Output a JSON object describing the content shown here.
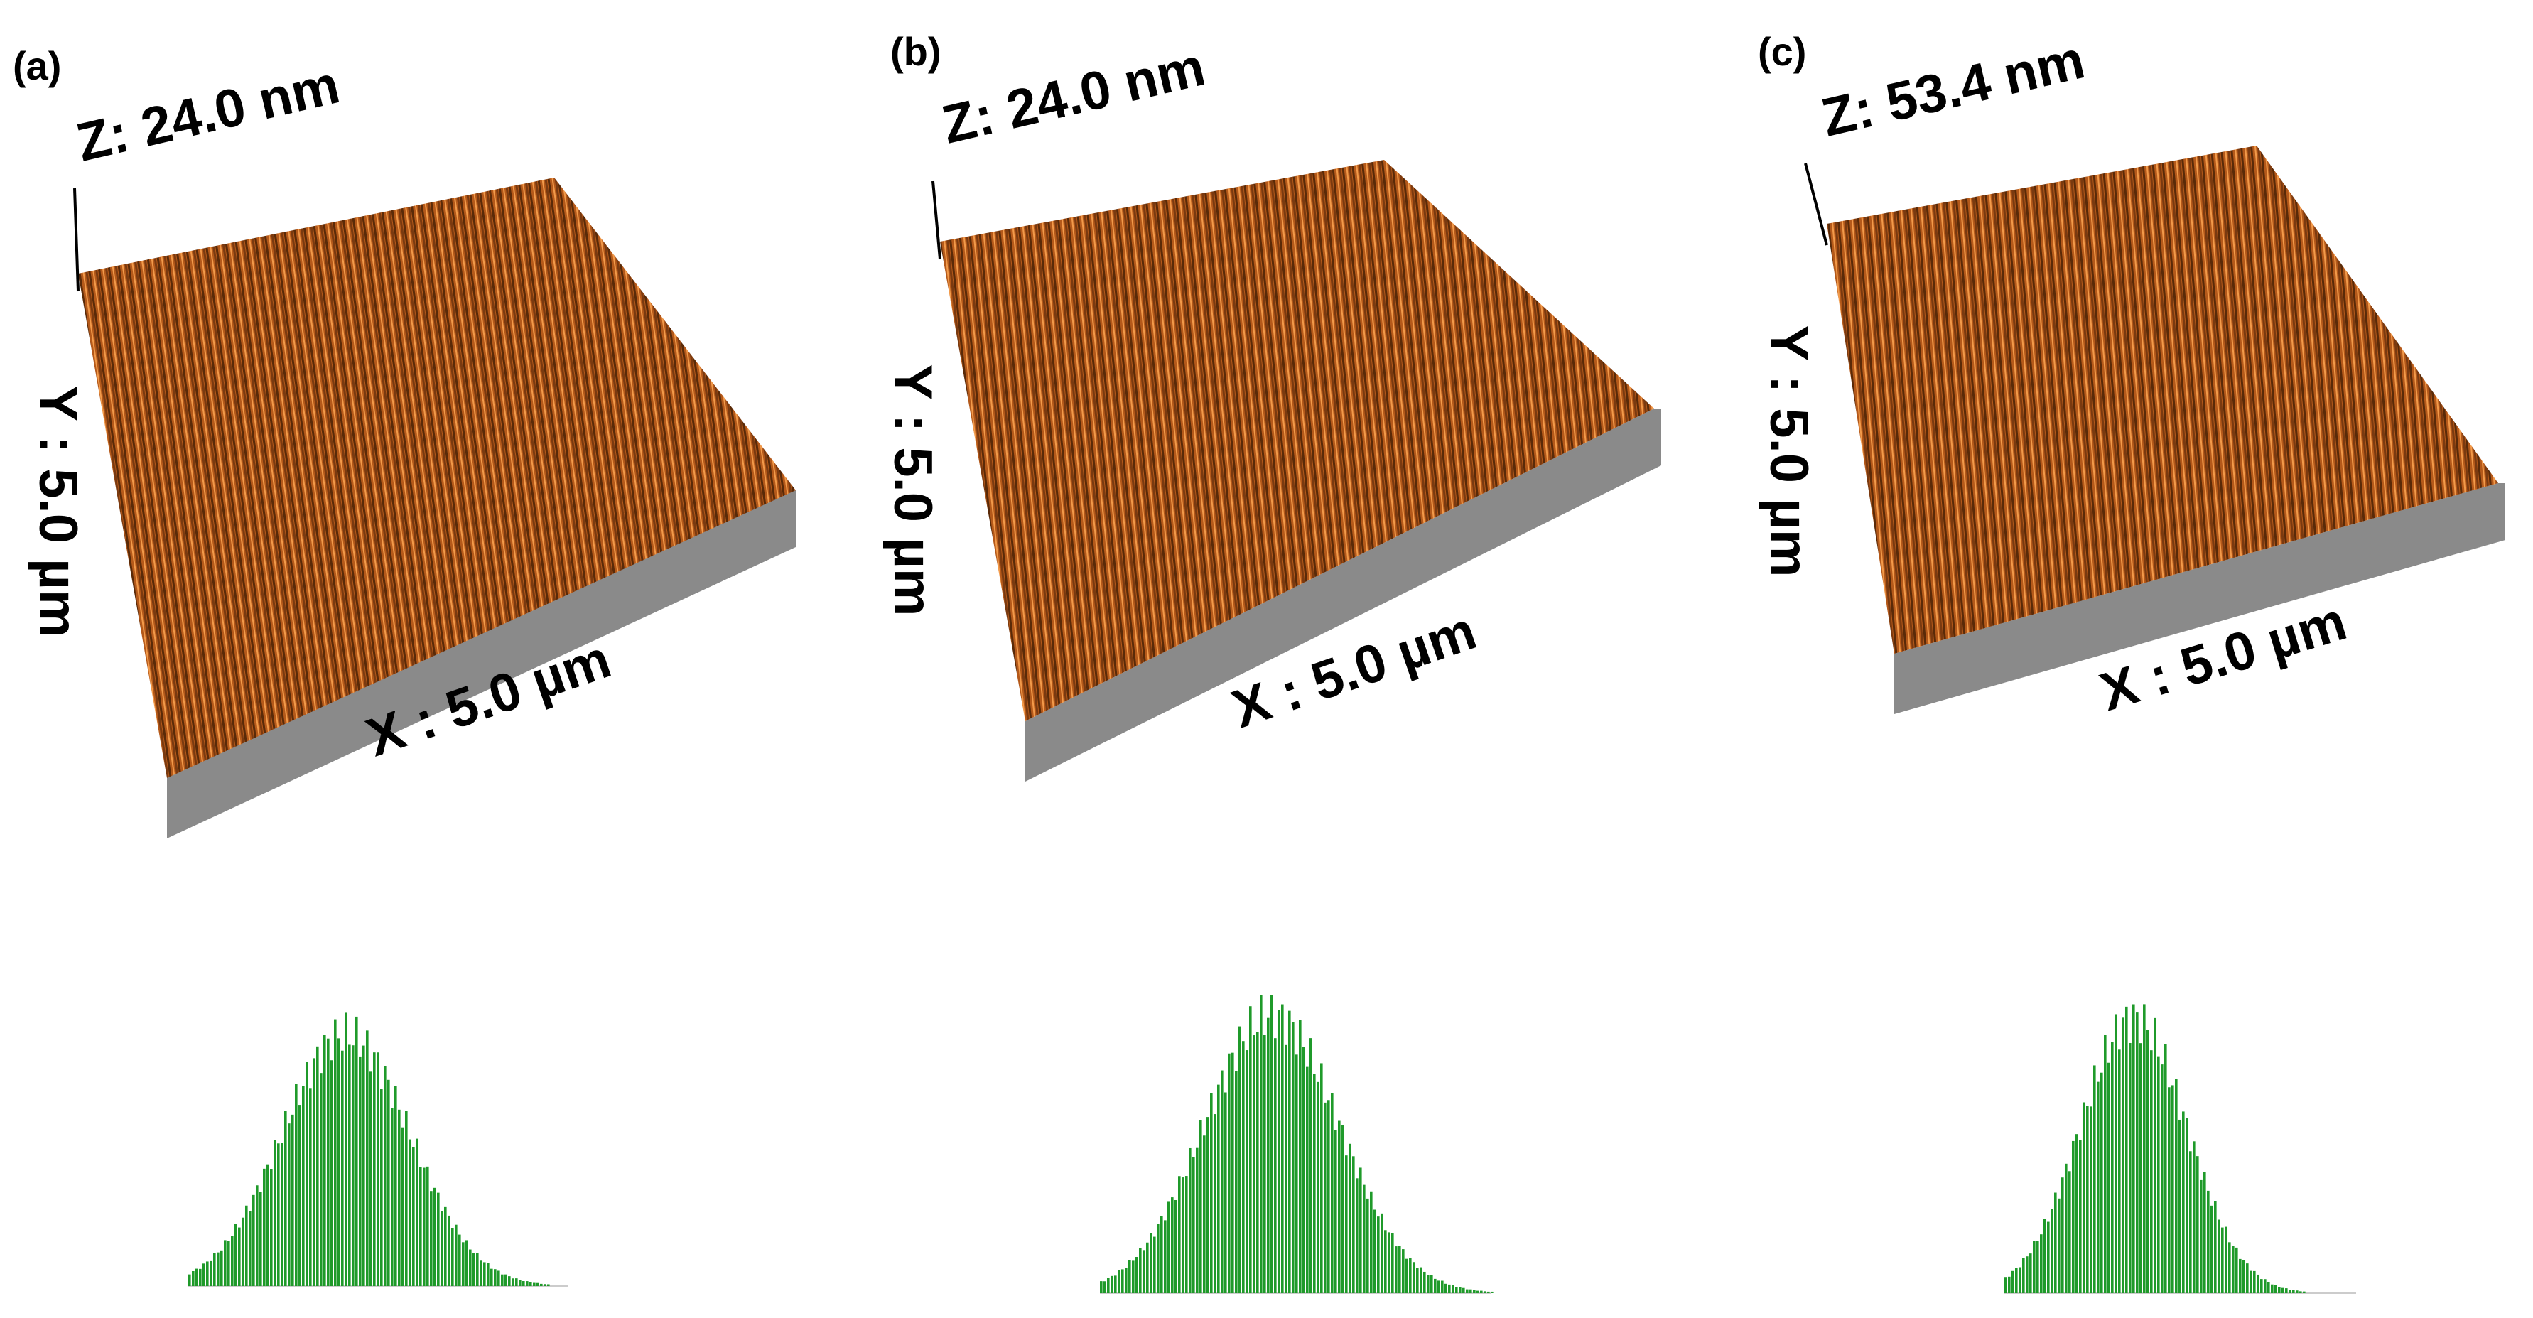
{
  "panels": [
    {
      "label": "(a)",
      "z_scale": "Z: 24.0 nm",
      "y_axis": "Y : 5.0 µm",
      "x_axis": "X : 5.0 µm"
    },
    {
      "label": "(b)",
      "z_scale": "Z: 24.0 nm",
      "y_axis": "Y : 5.0 µm",
      "x_axis": "X : 5.0 µm"
    },
    {
      "label": "(c)",
      "z_scale": "Z: 53.4 nm",
      "y_axis": "Y : 5.0 µm",
      "x_axis": "X : 5.0 µm"
    }
  ],
  "colors": {
    "surface_dark": "#5a2a08",
    "surface_mid": "#b4591a",
    "surface_light": "#f29a4a",
    "substrate": "#8a8a8a",
    "histogram": "#1f9a2a"
  }
}
